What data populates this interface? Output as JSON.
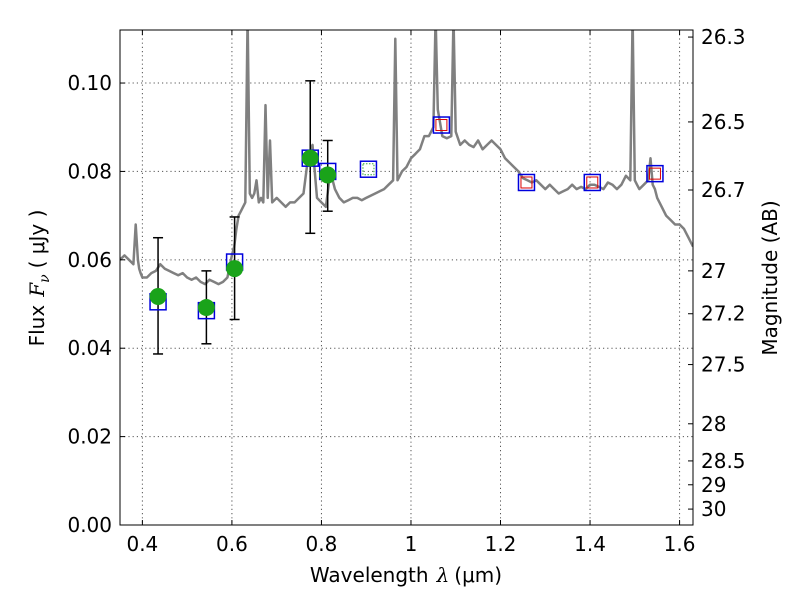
{
  "chart_data": {
    "type": "scatter",
    "xlabel": "Wavelength",
    "xlabel_sym": "λ",
    "xlabel_unit": "(μm)",
    "ylabel": "Flux",
    "ylabel_sym": "F",
    "ylabel_sub": "ν",
    "ylabel_unit": "( μJy )",
    "y2label": "Magnitude (AB)",
    "xlim": [
      0.35,
      1.63
    ],
    "ylim": [
      0,
      0.112
    ],
    "xticks": [
      0.4,
      0.6,
      0.8,
      1.0,
      1.2,
      1.4,
      1.6
    ],
    "xtick_labels": [
      "0.4",
      "0.6",
      "0.8",
      "1",
      "1.2",
      "1.4",
      "1.6"
    ],
    "yticks": [
      0,
      0.02,
      0.04,
      0.06,
      0.08,
      0.1
    ],
    "ytick_labels": [
      "0.00",
      "0.02",
      "0.04",
      "0.06",
      "0.08",
      "0.10"
    ],
    "mag_ticks": [
      {
        "label": "26.3",
        "flux": 0.1104
      },
      {
        "label": "26.5",
        "flux": 0.0912
      },
      {
        "label": "26.7",
        "flux": 0.0758
      },
      {
        "label": "27",
        "flux": 0.0575
      },
      {
        "label": "27.2",
        "flux": 0.0478
      },
      {
        "label": "27.5",
        "flux": 0.0363
      },
      {
        "label": "28",
        "flux": 0.0229
      },
      {
        "label": "28.5",
        "flux": 0.0145
      },
      {
        "label": "29",
        "flux": 0.0091
      },
      {
        "label": "30",
        "flux": 0.0036
      }
    ],
    "grid": true,
    "colors": {
      "sed": "#808080",
      "detection": "#1aa31a",
      "model_box": "#0000dd",
      "upper_box": "#dd0000",
      "green_box": "#33aa33",
      "errorbar": "#000000"
    },
    "detections": [
      {
        "x": 0.435,
        "y": 0.0517,
        "yerr_low": 0.0387,
        "yerr_high": 0.065
      },
      {
        "x": 0.543,
        "y": 0.0492,
        "yerr_low": 0.041,
        "yerr_high": 0.0575
      },
      {
        "x": 0.606,
        "y": 0.058,
        "yerr_low": 0.0465,
        "yerr_high": 0.0697
      },
      {
        "x": 0.775,
        "y": 0.083,
        "yerr_low": 0.066,
        "yerr_high": 0.1005
      },
      {
        "x": 0.814,
        "y": 0.0792,
        "yerr_low": 0.071,
        "yerr_high": 0.087
      }
    ],
    "model_boxes": [
      {
        "x": 0.435,
        "y": 0.0505,
        "inner": "none"
      },
      {
        "x": 0.543,
        "y": 0.0485,
        "inner": "none"
      },
      {
        "x": 0.606,
        "y": 0.0595,
        "inner": "none"
      },
      {
        "x": 0.775,
        "y": 0.083,
        "inner": "none"
      },
      {
        "x": 0.814,
        "y": 0.08,
        "inner": "none"
      },
      {
        "x": 0.905,
        "y": 0.0805,
        "inner": "green"
      },
      {
        "x": 1.068,
        "y": 0.0905,
        "inner": "red"
      },
      {
        "x": 1.258,
        "y": 0.0775,
        "inner": "red"
      },
      {
        "x": 1.405,
        "y": 0.0775,
        "inner": "red"
      },
      {
        "x": 1.545,
        "y": 0.0795,
        "inner": "red"
      }
    ],
    "sed_spectrum": {
      "x": [
        0.35,
        0.36,
        0.37,
        0.38,
        0.385,
        0.39,
        0.393,
        0.396,
        0.4,
        0.41,
        0.42,
        0.43,
        0.44,
        0.45,
        0.46,
        0.47,
        0.48,
        0.49,
        0.5,
        0.51,
        0.52,
        0.53,
        0.54,
        0.55,
        0.56,
        0.57,
        0.58,
        0.59,
        0.6,
        0.605,
        0.61,
        0.615,
        0.62,
        0.625,
        0.63,
        0.635,
        0.64,
        0.645,
        0.65,
        0.655,
        0.66,
        0.665,
        0.67,
        0.675,
        0.68,
        0.685,
        0.69,
        0.7,
        0.71,
        0.72,
        0.73,
        0.74,
        0.75,
        0.76,
        0.77,
        0.78,
        0.79,
        0.8,
        0.81,
        0.82,
        0.83,
        0.84,
        0.85,
        0.86,
        0.87,
        0.88,
        0.89,
        0.9,
        0.92,
        0.94,
        0.95,
        0.96,
        0.965,
        0.97,
        0.975,
        0.98,
        0.99,
        1.0,
        1.01,
        1.02,
        1.03,
        1.04,
        1.05,
        1.055,
        1.06,
        1.065,
        1.07,
        1.08,
        1.09,
        1.095,
        1.1,
        1.11,
        1.12,
        1.13,
        1.14,
        1.15,
        1.16,
        1.17,
        1.18,
        1.19,
        1.2,
        1.21,
        1.22,
        1.23,
        1.24,
        1.25,
        1.26,
        1.27,
        1.28,
        1.29,
        1.3,
        1.31,
        1.32,
        1.33,
        1.34,
        1.35,
        1.36,
        1.37,
        1.38,
        1.39,
        1.4,
        1.41,
        1.42,
        1.43,
        1.44,
        1.45,
        1.46,
        1.47,
        1.48,
        1.49,
        1.495,
        1.5,
        1.505,
        1.51,
        1.52,
        1.53,
        1.535,
        1.54,
        1.545,
        1.55,
        1.56,
        1.57,
        1.58,
        1.59,
        1.6,
        1.61,
        1.62,
        1.63
      ],
      "y": [
        0.06,
        0.061,
        0.06,
        0.059,
        0.068,
        0.06,
        0.058,
        0.057,
        0.056,
        0.056,
        0.057,
        0.0575,
        0.059,
        0.058,
        0.0575,
        0.057,
        0.0565,
        0.057,
        0.056,
        0.0555,
        0.056,
        0.055,
        0.0545,
        0.0555,
        0.055,
        0.0545,
        0.055,
        0.056,
        0.061,
        0.063,
        0.067,
        0.07,
        0.071,
        0.072,
        0.073,
        0.115,
        0.075,
        0.074,
        0.075,
        0.078,
        0.073,
        0.074,
        0.073,
        0.095,
        0.074,
        0.087,
        0.073,
        0.074,
        0.073,
        0.072,
        0.073,
        0.073,
        0.074,
        0.075,
        0.083,
        0.086,
        0.074,
        0.073,
        0.072,
        0.08,
        0.076,
        0.074,
        0.073,
        0.0735,
        0.074,
        0.074,
        0.0735,
        0.074,
        0.075,
        0.076,
        0.077,
        0.078,
        0.11,
        0.078,
        0.079,
        0.08,
        0.081,
        0.083,
        0.084,
        0.085,
        0.088,
        0.088,
        0.09,
        0.115,
        0.094,
        0.091,
        0.088,
        0.0875,
        0.088,
        0.115,
        0.089,
        0.086,
        0.087,
        0.086,
        0.0855,
        0.087,
        0.085,
        0.086,
        0.087,
        0.086,
        0.085,
        0.083,
        0.082,
        0.081,
        0.08,
        0.0785,
        0.078,
        0.0775,
        0.078,
        0.077,
        0.076,
        0.077,
        0.076,
        0.075,
        0.0755,
        0.076,
        0.077,
        0.076,
        0.0765,
        0.076,
        0.077,
        0.077,
        0.0765,
        0.076,
        0.0775,
        0.077,
        0.076,
        0.077,
        0.079,
        0.078,
        0.115,
        0.078,
        0.077,
        0.076,
        0.077,
        0.078,
        0.083,
        0.077,
        0.076,
        0.074,
        0.072,
        0.07,
        0.069,
        0.068,
        0.068,
        0.067,
        0.065,
        0.063
      ]
    }
  }
}
